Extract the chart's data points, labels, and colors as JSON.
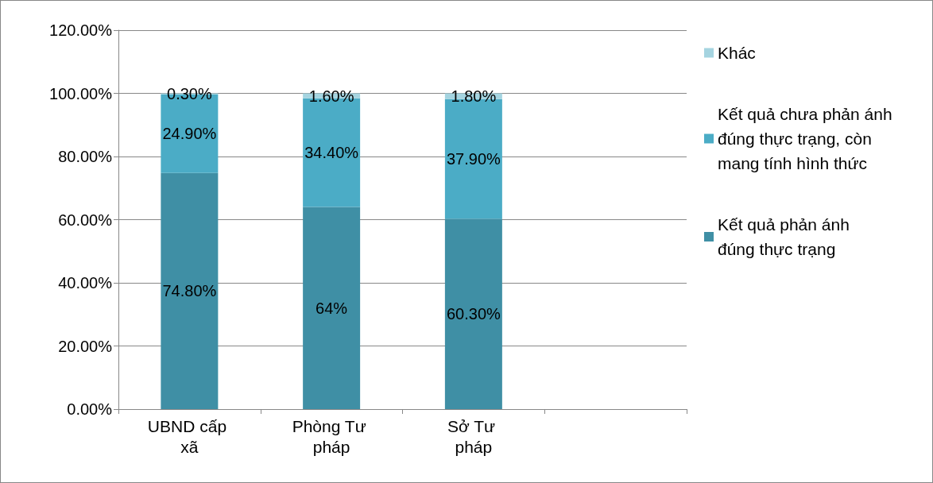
{
  "chart_data": {
    "type": "bar",
    "stacked": true,
    "categories": [
      "UBND cấp xã",
      "Phòng Tư pháp",
      "Sở Tư pháp",
      null
    ],
    "series": [
      {
        "name": "Kết quả phản ánh đúng thực trạng",
        "color": "#3f8fa5",
        "values": [
          74.8,
          64,
          60.3,
          null
        ],
        "value_labels": [
          "74.80%",
          "64%",
          "60.30%",
          null
        ]
      },
      {
        "name": "Kết quả chưa phản ánh đúng thực trạng, còn mang tính hình thức",
        "color": "#4bacc6",
        "values": [
          24.9,
          34.4,
          37.9,
          null
        ],
        "value_labels": [
          "24.90%",
          "34.40%",
          "37.90%",
          null
        ]
      },
      {
        "name": "Khác",
        "color": "#a5d4e0",
        "values": [
          0.3,
          1.6,
          1.8,
          null
        ],
        "value_labels": [
          "0.30%",
          "1.60%",
          "1.80%",
          null
        ]
      }
    ],
    "ylim": [
      0,
      120
    ],
    "yticks": [
      {
        "value": 0,
        "label": "0.00%"
      },
      {
        "value": 20,
        "label": "20.00%"
      },
      {
        "value": 40,
        "label": "40.00%"
      },
      {
        "value": 60,
        "label": "60.00%"
      },
      {
        "value": 80,
        "label": "80.00%"
      },
      {
        "value": 100,
        "label": "100.00%"
      },
      {
        "value": 120,
        "label": "120.00%"
      }
    ],
    "grid": "y",
    "legend": "right"
  }
}
